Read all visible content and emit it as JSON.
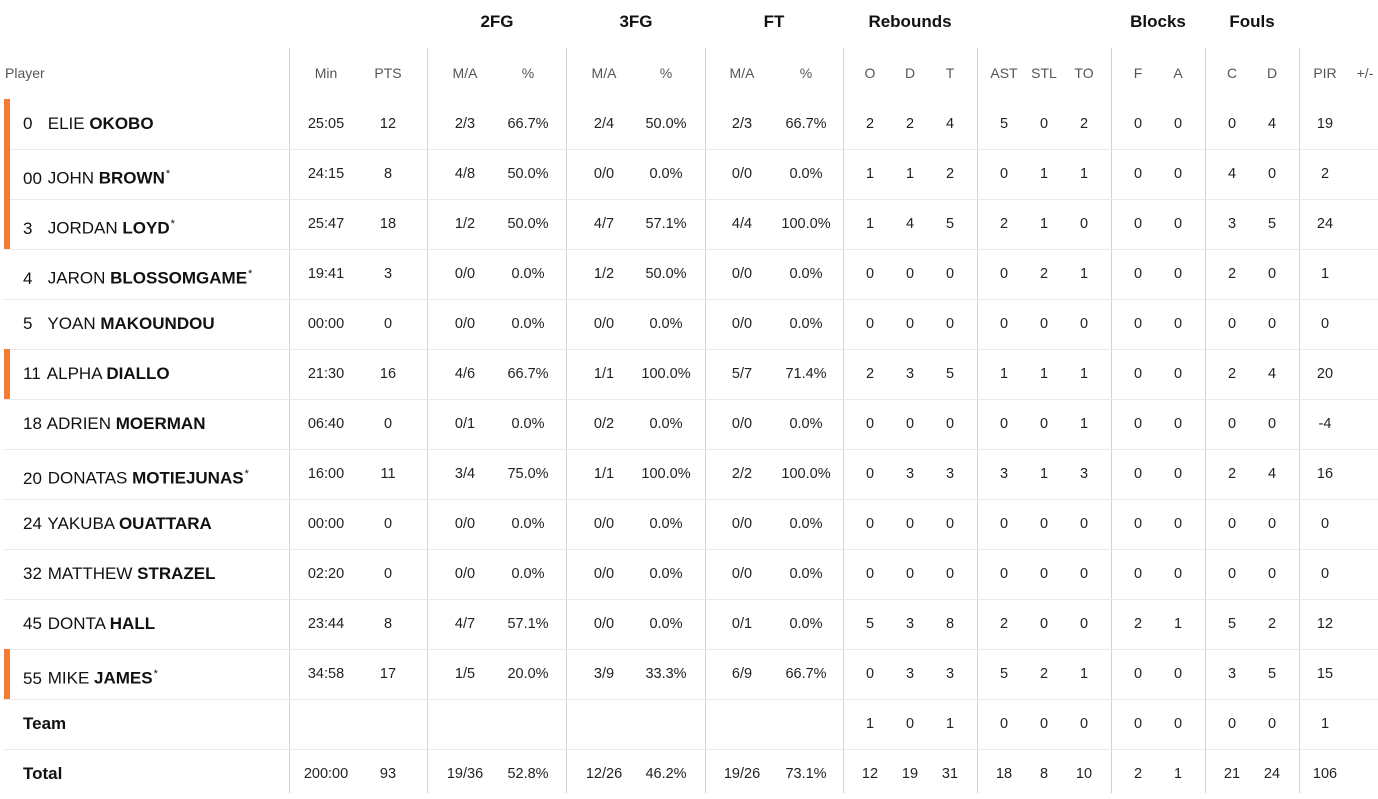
{
  "accent_color": "#f47b35",
  "group_headers": [
    "2FG",
    "3FG",
    "FT",
    "Rebounds",
    "Blocks",
    "Fouls"
  ],
  "columns": [
    "Player",
    "Min",
    "PTS",
    "M/A",
    "%",
    "M/A",
    "%",
    "M/A",
    "%",
    "O",
    "D",
    "T",
    "AST",
    "STL",
    "TO",
    "F",
    "A",
    "C",
    "D",
    "PIR",
    "+/-"
  ],
  "players": [
    {
      "num": "0",
      "first": "ELIE",
      "last": "OKOBO",
      "starter_mark": "",
      "highlight": true,
      "stats": [
        "25:05",
        "12",
        "2/3",
        "66.7%",
        "2/4",
        "50.0%",
        "2/3",
        "66.7%",
        "2",
        "2",
        "4",
        "5",
        "0",
        "2",
        "0",
        "0",
        "0",
        "4",
        "19",
        ""
      ]
    },
    {
      "num": "00",
      "first": "JOHN",
      "last": "BROWN",
      "starter_mark": "*",
      "highlight": true,
      "stats": [
        "24:15",
        "8",
        "4/8",
        "50.0%",
        "0/0",
        "0.0%",
        "0/0",
        "0.0%",
        "1",
        "1",
        "2",
        "0",
        "1",
        "1",
        "0",
        "0",
        "4",
        "0",
        "2",
        ""
      ]
    },
    {
      "num": "3",
      "first": "JORDAN",
      "last": "LOYD",
      "starter_mark": "*",
      "highlight": true,
      "stats": [
        "25:47",
        "18",
        "1/2",
        "50.0%",
        "4/7",
        "57.1%",
        "4/4",
        "100.0%",
        "1",
        "4",
        "5",
        "2",
        "1",
        "0",
        "0",
        "0",
        "3",
        "5",
        "24",
        ""
      ]
    },
    {
      "num": "4",
      "first": "JARON",
      "last": "BLOSSOMGAME",
      "starter_mark": "*",
      "highlight": false,
      "stats": [
        "19:41",
        "3",
        "0/0",
        "0.0%",
        "1/2",
        "50.0%",
        "0/0",
        "0.0%",
        "0",
        "0",
        "0",
        "0",
        "2",
        "1",
        "0",
        "0",
        "2",
        "0",
        "1",
        ""
      ]
    },
    {
      "num": "5",
      "first": "YOAN",
      "last": "MAKOUNDOU",
      "starter_mark": "",
      "highlight": false,
      "stats": [
        "00:00",
        "0",
        "0/0",
        "0.0%",
        "0/0",
        "0.0%",
        "0/0",
        "0.0%",
        "0",
        "0",
        "0",
        "0",
        "0",
        "0",
        "0",
        "0",
        "0",
        "0",
        "0",
        ""
      ]
    },
    {
      "num": "11",
      "first": "ALPHA",
      "last": "DIALLO",
      "starter_mark": "",
      "highlight": true,
      "stats": [
        "21:30",
        "16",
        "4/6",
        "66.7%",
        "1/1",
        "100.0%",
        "5/7",
        "71.4%",
        "2",
        "3",
        "5",
        "1",
        "1",
        "1",
        "0",
        "0",
        "2",
        "4",
        "20",
        ""
      ]
    },
    {
      "num": "18",
      "first": "ADRIEN",
      "last": "MOERMAN",
      "starter_mark": "",
      "highlight": false,
      "stats": [
        "06:40",
        "0",
        "0/1",
        "0.0%",
        "0/2",
        "0.0%",
        "0/0",
        "0.0%",
        "0",
        "0",
        "0",
        "0",
        "0",
        "1",
        "0",
        "0",
        "0",
        "0",
        "-4",
        ""
      ]
    },
    {
      "num": "20",
      "first": "DONATAS",
      "last": "MOTIEJUNAS",
      "starter_mark": "*",
      "highlight": false,
      "stats": [
        "16:00",
        "11",
        "3/4",
        "75.0%",
        "1/1",
        "100.0%",
        "2/2",
        "100.0%",
        "0",
        "3",
        "3",
        "3",
        "1",
        "3",
        "0",
        "0",
        "2",
        "4",
        "16",
        ""
      ]
    },
    {
      "num": "24",
      "first": "YAKUBA",
      "last": "OUATTARA",
      "starter_mark": "",
      "highlight": false,
      "stats": [
        "00:00",
        "0",
        "0/0",
        "0.0%",
        "0/0",
        "0.0%",
        "0/0",
        "0.0%",
        "0",
        "0",
        "0",
        "0",
        "0",
        "0",
        "0",
        "0",
        "0",
        "0",
        "0",
        ""
      ]
    },
    {
      "num": "32",
      "first": "MATTHEW",
      "last": "STRAZEL",
      "starter_mark": "",
      "highlight": false,
      "stats": [
        "02:20",
        "0",
        "0/0",
        "0.0%",
        "0/0",
        "0.0%",
        "0/0",
        "0.0%",
        "0",
        "0",
        "0",
        "0",
        "0",
        "0",
        "0",
        "0",
        "0",
        "0",
        "0",
        ""
      ]
    },
    {
      "num": "45",
      "first": "DONTA",
      "last": "HALL",
      "starter_mark": "",
      "highlight": false,
      "stats": [
        "23:44",
        "8",
        "4/7",
        "57.1%",
        "0/0",
        "0.0%",
        "0/1",
        "0.0%",
        "5",
        "3",
        "8",
        "2",
        "0",
        "0",
        "2",
        "1",
        "5",
        "2",
        "12",
        ""
      ]
    },
    {
      "num": "55",
      "first": "MIKE",
      "last": "JAMES",
      "starter_mark": "*",
      "highlight": true,
      "stats": [
        "34:58",
        "17",
        "1/5",
        "20.0%",
        "3/9",
        "33.3%",
        "6/9",
        "66.7%",
        "0",
        "3",
        "3",
        "5",
        "2",
        "1",
        "0",
        "0",
        "3",
        "5",
        "15",
        ""
      ]
    }
  ],
  "team_row": {
    "label": "Team",
    "stats": [
      "",
      "",
      "",
      "",
      "",
      "",
      "",
      "",
      "1",
      "0",
      "1",
      "0",
      "0",
      "0",
      "0",
      "0",
      "0",
      "0",
      "1",
      ""
    ]
  },
  "total_row": {
    "label": "Total",
    "stats": [
      "200:00",
      "93",
      "19/36",
      "52.8%",
      "12/26",
      "46.2%",
      "19/26",
      "73.1%",
      "12",
      "19",
      "31",
      "18",
      "8",
      "10",
      "2",
      "1",
      "21",
      "24",
      "106",
      ""
    ]
  }
}
